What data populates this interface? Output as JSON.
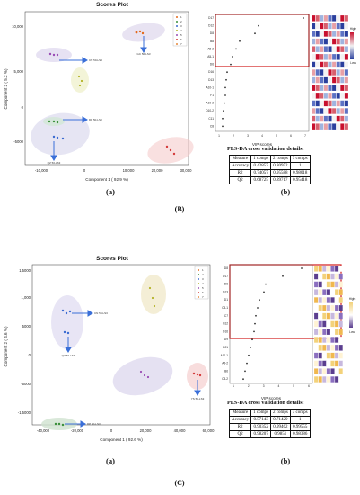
{
  "panel_B": {
    "title": "Scores Plot",
    "xlabel": "Component 1 ( 92.9 %)",
    "ylabel": "Component 2 ( 5.2 %)",
    "xticks": [
      "-10,000",
      "0",
      "10,000",
      "20,000",
      "30,000"
    ],
    "yticks": [
      "10,000",
      "5,000",
      "0",
      "-5000"
    ],
    "legend": [
      "1",
      "2",
      "3",
      "4",
      "5",
      "6",
      "7"
    ],
    "arrow_labels": [
      "GC 50-LS3",
      "CN 50-LS3",
      "DP 50-LS3",
      "QZ 50-LS3"
    ],
    "vip_xlabel": "VIP scores",
    "vip_xticks": [
      "1",
      "2",
      "3",
      "4",
      "5",
      "6",
      "7"
    ],
    "vip_features": [
      "D17",
      "D12",
      "D8",
      "B8",
      "A5-2",
      "A5-1",
      "D6",
      "D16",
      "D13",
      "A10-1",
      "F1",
      "A10-2",
      "D10-2",
      "C11",
      "C8"
    ],
    "heat_legend": [
      "High",
      "Low"
    ],
    "table_title": "PLS-DA cross validation details:",
    "table_header": [
      "Measure",
      "1 comps",
      "2 comps",
      "3 comps"
    ],
    "table_rows": [
      [
        "Accuracy",
        "0.42857",
        "0.80952",
        "1"
      ],
      [
        "R2",
        "0.74057",
        "0.95588",
        "0.98018"
      ],
      [
        "Q2",
        "0.68725",
        "0.89717",
        "0.95418"
      ]
    ],
    "sub_a": "(a)",
    "sub_b": "(b)",
    "caption": "(B)"
  },
  "panel_C": {
    "title": "Scores Plot",
    "xlabel": "Component 1 ( 92.6 %)",
    "ylabel": "Component 2 ( 4.6 %)",
    "xticks": [
      "-40,000",
      "-20,000",
      "0",
      "20,000",
      "40,000",
      "60,000"
    ],
    "yticks": [
      "1,5000",
      "1,000",
      "5000",
      "0",
      "-5000",
      "-1,5000"
    ],
    "legend": [
      "1",
      "2",
      "3",
      "4",
      "5",
      "6",
      "7"
    ],
    "arrow_labels": [
      "CN 50-LS3",
      "QZ 50-LS3",
      "YS 50-LS3",
      "DP 50-LS3"
    ],
    "vip_xlabel": "VIP scores",
    "vip_xticks": [
      "1",
      "2",
      "3",
      "4",
      "5",
      "6"
    ],
    "vip_features": [
      "D8",
      "D17",
      "D6",
      "D13",
      "D1",
      "C3-1",
      "C7",
      "B12",
      "D16",
      "D9",
      "D21",
      "A10-1",
      "A5-2",
      "B6",
      "C3-2"
    ],
    "heat_legend": [
      "High",
      "Low"
    ],
    "table_title": "PLS-DA cross validation details:",
    "table_header": [
      "Measure",
      "1 comps",
      "2 comps",
      "3 comps"
    ],
    "table_rows": [
      [
        "Accuracy",
        "0.57143",
        "0.71429",
        "1"
      ],
      [
        "R2",
        "0.90352",
        "0.99462",
        "0.99555"
      ],
      [
        "Q2",
        "0.98207",
        "0.9851",
        "0.98386"
      ]
    ],
    "sub_a": "(a)",
    "sub_b": "(b)",
    "caption": "(C)"
  }
}
